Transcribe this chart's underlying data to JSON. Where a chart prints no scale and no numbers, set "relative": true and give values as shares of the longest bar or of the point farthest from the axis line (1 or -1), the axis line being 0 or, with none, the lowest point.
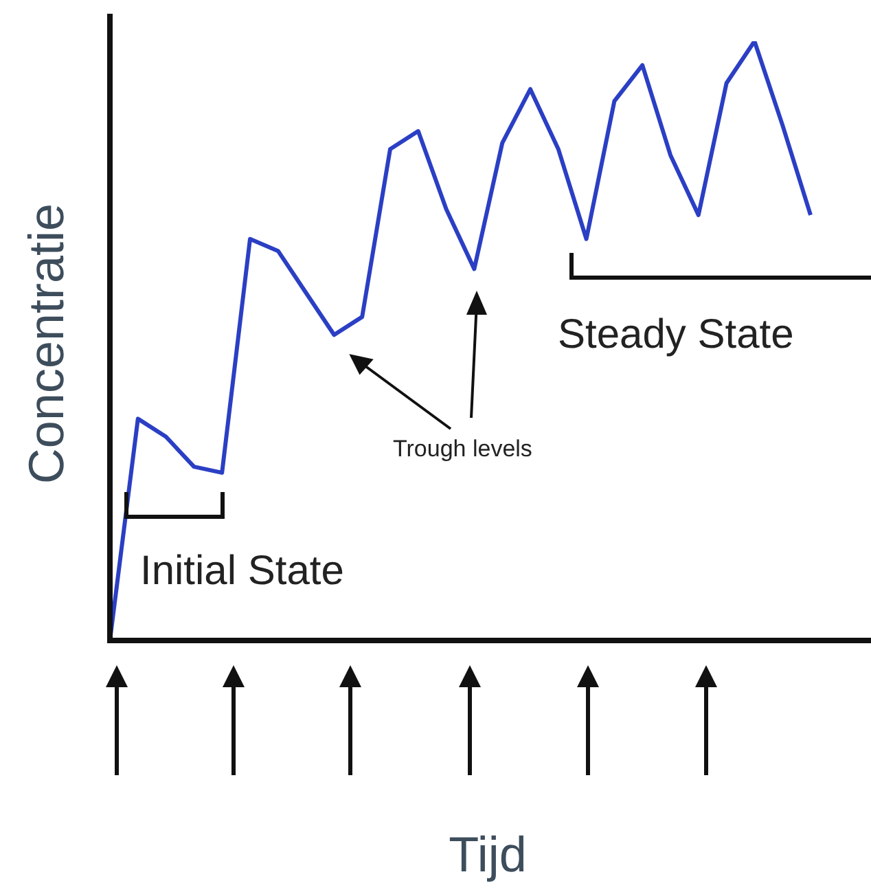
{
  "chart_data": {
    "type": "line",
    "relative": true,
    "xlabel": "Tijd",
    "ylabel": "Concentratie",
    "categories": [
      null,
      null,
      null,
      null,
      null,
      null,
      null,
      null,
      null,
      null,
      null,
      null,
      null,
      null,
      null,
      null,
      null,
      null,
      null,
      null,
      null,
      null,
      null,
      null,
      null,
      null
    ],
    "series": [
      {
        "color": "#2b3fc4",
        "values": [
          0,
          0.37,
          0.34,
          0.29,
          0.28,
          0.67,
          0.65,
          0.58,
          0.51,
          0.54,
          0.82,
          0.85,
          0.72,
          0.62,
          0.83,
          0.92,
          0.82,
          0.67,
          0.9,
          0.96,
          0.81,
          0.71,
          0.93,
          1,
          0.86,
          0.71
        ]
      }
    ],
    "annotations": [
      "Initial State",
      "Trough levels",
      "Steady State"
    ],
    "marker": "none",
    "grid": false,
    "legend": false
  }
}
